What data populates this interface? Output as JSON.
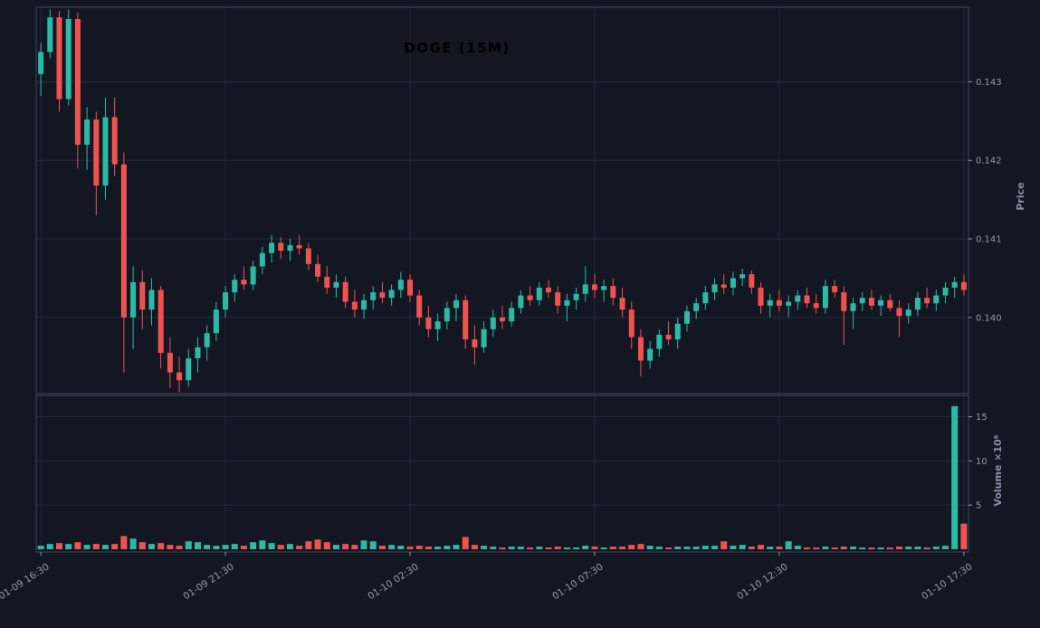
{
  "app": {
    "title": "DOGE (15M)"
  },
  "colors": {
    "background": "#131722",
    "up": "#2cb9a8",
    "down": "#ef5350",
    "grid": "#222838",
    "panel_border": "#3e4557",
    "tick_text": "#959aa8",
    "axis_label_text": "#8a90a0",
    "title_text": "#000000"
  },
  "chart_data": {
    "type": "candlestick",
    "title": "DOGE (15M)",
    "symbol": "DOGE",
    "timeframe": "15M",
    "grid": true,
    "legend_position": "none",
    "price_axis": {
      "label": "Price",
      "ticks": [
        "0.140",
        "0.141",
        "0.142",
        "0.143"
      ],
      "tick_values": [
        0.14,
        0.141,
        0.142,
        0.143
      ],
      "range": [
        0.13903,
        0.14395
      ],
      "side": "right"
    },
    "volume_axis": {
      "label": "Volume ×10⁶",
      "ticks": [
        "5",
        "10",
        "15"
      ],
      "tick_values": [
        5,
        10,
        15
      ],
      "range": [
        0,
        17
      ],
      "unit_multiplier": 1000000,
      "side": "right"
    },
    "x_axis": {
      "tick_indices": [
        0,
        20,
        40,
        60,
        80,
        100
      ],
      "tick_labels": [
        "01-09 16:30",
        "01-09 21:30",
        "01-10 02:30",
        "01-10 07:30",
        "01-10 12:30",
        "01-10 17:30"
      ],
      "label_rotation_deg": -33
    },
    "candle_fields": [
      "open",
      "high",
      "low",
      "close",
      "volume_millions"
    ],
    "candles": [
      [
        0.1431,
        0.1435,
        0.14282,
        0.14338,
        0.4
      ],
      [
        0.14338,
        0.14392,
        0.1433,
        0.14382,
        0.6
      ],
      [
        0.14382,
        0.1439,
        0.14262,
        0.14278,
        0.7
      ],
      [
        0.14278,
        0.14392,
        0.1427,
        0.1438,
        0.6
      ],
      [
        0.1438,
        0.14388,
        0.1419,
        0.1422,
        0.8
      ],
      [
        0.1422,
        0.14268,
        0.14188,
        0.14252,
        0.5
      ],
      [
        0.14252,
        0.14262,
        0.1413,
        0.14168,
        0.6
      ],
      [
        0.14168,
        0.1428,
        0.1415,
        0.14255,
        0.5
      ],
      [
        0.14255,
        0.1428,
        0.1418,
        0.14195,
        0.6
      ],
      [
        0.14195,
        0.1421,
        0.1393,
        0.14,
        1.5
      ],
      [
        0.14,
        0.14065,
        0.1396,
        0.14045,
        1.2
      ],
      [
        0.14045,
        0.1406,
        0.13985,
        0.1401,
        0.8
      ],
      [
        0.1401,
        0.1405,
        0.1399,
        0.14035,
        0.6
      ],
      [
        0.14035,
        0.1404,
        0.13935,
        0.13955,
        0.7
      ],
      [
        0.13955,
        0.13975,
        0.1391,
        0.1393,
        0.5
      ],
      [
        0.1393,
        0.1395,
        0.13905,
        0.1392,
        0.4
      ],
      [
        0.1392,
        0.1396,
        0.13912,
        0.13948,
        0.9
      ],
      [
        0.13948,
        0.13975,
        0.1393,
        0.13962,
        0.8
      ],
      [
        0.13962,
        0.1399,
        0.13945,
        0.1398,
        0.5
      ],
      [
        0.1398,
        0.1402,
        0.1397,
        0.1401,
        0.4
      ],
      [
        0.1401,
        0.1404,
        0.14,
        0.14032,
        0.5
      ],
      [
        0.14032,
        0.14055,
        0.1402,
        0.14048,
        0.6
      ],
      [
        0.14048,
        0.14065,
        0.14035,
        0.14042,
        0.4
      ],
      [
        0.14042,
        0.14072,
        0.14035,
        0.14065,
        0.8
      ],
      [
        0.14065,
        0.1409,
        0.14055,
        0.14082,
        1.0
      ],
      [
        0.14082,
        0.14105,
        0.1407,
        0.14095,
        0.7
      ],
      [
        0.14095,
        0.14102,
        0.14075,
        0.14085,
        0.5
      ],
      [
        0.14085,
        0.141,
        0.14072,
        0.14092,
        0.6
      ],
      [
        0.14092,
        0.14105,
        0.1408,
        0.14088,
        0.4
      ],
      [
        0.14088,
        0.14095,
        0.1406,
        0.14068,
        0.9
      ],
      [
        0.14068,
        0.1408,
        0.14045,
        0.14052,
        1.1
      ],
      [
        0.14052,
        0.14065,
        0.1403,
        0.14038,
        0.8
      ],
      [
        0.14038,
        0.14055,
        0.14025,
        0.14045,
        0.5
      ],
      [
        0.14045,
        0.14052,
        0.14012,
        0.1402,
        0.6
      ],
      [
        0.1402,
        0.14035,
        0.14,
        0.1401,
        0.5
      ],
      [
        0.1401,
        0.1403,
        0.13998,
        0.14022,
        1.0
      ],
      [
        0.14022,
        0.1404,
        0.1401,
        0.14032,
        0.9
      ],
      [
        0.14032,
        0.14045,
        0.14018,
        0.14025,
        0.4
      ],
      [
        0.14025,
        0.14042,
        0.14015,
        0.14035,
        0.5
      ],
      [
        0.14035,
        0.14058,
        0.14025,
        0.14048,
        0.4
      ],
      [
        0.14048,
        0.14055,
        0.1402,
        0.14028,
        0.3
      ],
      [
        0.14028,
        0.14035,
        0.1399,
        0.14,
        0.4
      ],
      [
        0.14,
        0.14015,
        0.13975,
        0.13985,
        0.3
      ],
      [
        0.13985,
        0.14005,
        0.1397,
        0.13995,
        0.3
      ],
      [
        0.13995,
        0.1402,
        0.13985,
        0.14012,
        0.4
      ],
      [
        0.14012,
        0.1403,
        0.13995,
        0.14022,
        0.5
      ],
      [
        0.14022,
        0.14028,
        0.1396,
        0.13972,
        1.4
      ],
      [
        0.13972,
        0.1399,
        0.1394,
        0.13962,
        0.5
      ],
      [
        0.13962,
        0.13995,
        0.13955,
        0.13985,
        0.4
      ],
      [
        0.13985,
        0.1401,
        0.13975,
        0.14,
        0.3
      ],
      [
        0.14,
        0.14015,
        0.13985,
        0.13995,
        0.2
      ],
      [
        0.13995,
        0.1402,
        0.13988,
        0.14012,
        0.3
      ],
      [
        0.14012,
        0.14035,
        0.14005,
        0.14028,
        0.3
      ],
      [
        0.14028,
        0.1404,
        0.14015,
        0.14022,
        0.2
      ],
      [
        0.14022,
        0.14045,
        0.14015,
        0.14038,
        0.3
      ],
      [
        0.14038,
        0.14048,
        0.14025,
        0.14032,
        0.2
      ],
      [
        0.14032,
        0.1404,
        0.14005,
        0.14015,
        0.3
      ],
      [
        0.14015,
        0.1403,
        0.13995,
        0.14022,
        0.2
      ],
      [
        0.14022,
        0.14038,
        0.1401,
        0.1403,
        0.2
      ],
      [
        0.1403,
        0.14065,
        0.1402,
        0.14042,
        0.4
      ],
      [
        0.14042,
        0.14055,
        0.14025,
        0.14035,
        0.3
      ],
      [
        0.14035,
        0.14048,
        0.1402,
        0.1404,
        0.2
      ],
      [
        0.1404,
        0.1405,
        0.14015,
        0.14025,
        0.3
      ],
      [
        0.14025,
        0.14038,
        0.14,
        0.1401,
        0.3
      ],
      [
        0.1401,
        0.1402,
        0.1396,
        0.13975,
        0.5
      ],
      [
        0.13975,
        0.13985,
        0.13925,
        0.13945,
        0.6
      ],
      [
        0.13945,
        0.1397,
        0.13935,
        0.1396,
        0.4
      ],
      [
        0.1396,
        0.13985,
        0.1395,
        0.13978,
        0.3
      ],
      [
        0.13978,
        0.13995,
        0.13965,
        0.13972,
        0.2
      ],
      [
        0.13972,
        0.14,
        0.1396,
        0.13992,
        0.3
      ],
      [
        0.13992,
        0.14015,
        0.13982,
        0.14008,
        0.3
      ],
      [
        0.14008,
        0.14025,
        0.13998,
        0.14018,
        0.3
      ],
      [
        0.14018,
        0.1404,
        0.1401,
        0.14032,
        0.4
      ],
      [
        0.14032,
        0.1405,
        0.14022,
        0.14042,
        0.4
      ],
      [
        0.14042,
        0.14055,
        0.1403,
        0.14038,
        0.9
      ],
      [
        0.14038,
        0.14058,
        0.14028,
        0.1405,
        0.4
      ],
      [
        0.1405,
        0.14062,
        0.1404,
        0.14055,
        0.5
      ],
      [
        0.14055,
        0.1406,
        0.1403,
        0.14038,
        0.3
      ],
      [
        0.14038,
        0.14045,
        0.14005,
        0.14015,
        0.5
      ],
      [
        0.14015,
        0.1403,
        0.14,
        0.14022,
        0.3
      ],
      [
        0.14022,
        0.14035,
        0.14008,
        0.14015,
        0.3
      ],
      [
        0.14015,
        0.14028,
        0.14,
        0.1402,
        0.9
      ],
      [
        0.1402,
        0.14035,
        0.1401,
        0.14028,
        0.4
      ],
      [
        0.14028,
        0.14038,
        0.14012,
        0.14018,
        0.2
      ],
      [
        0.14018,
        0.1403,
        0.14005,
        0.14012,
        0.2
      ],
      [
        0.14012,
        0.14048,
        0.14005,
        0.1404,
        0.3
      ],
      [
        0.1404,
        0.14048,
        0.14025,
        0.14032,
        0.2
      ],
      [
        0.14032,
        0.1404,
        0.13965,
        0.14008,
        0.3
      ],
      [
        0.14008,
        0.14025,
        0.13985,
        0.14018,
        0.3
      ],
      [
        0.14018,
        0.14032,
        0.14008,
        0.14025,
        0.2
      ],
      [
        0.14025,
        0.14035,
        0.1401,
        0.14015,
        0.2
      ],
      [
        0.14015,
        0.14028,
        0.14002,
        0.14022,
        0.2
      ],
      [
        0.14022,
        0.1403,
        0.14008,
        0.14012,
        0.2
      ],
      [
        0.14012,
        0.14022,
        0.13975,
        0.14002,
        0.3
      ],
      [
        0.14002,
        0.14018,
        0.13992,
        0.1401,
        0.3
      ],
      [
        0.1401,
        0.14032,
        0.14002,
        0.14025,
        0.3
      ],
      [
        0.14025,
        0.14038,
        0.14012,
        0.14018,
        0.2
      ],
      [
        0.14018,
        0.14035,
        0.14008,
        0.14028,
        0.3
      ],
      [
        0.14028,
        0.14045,
        0.14018,
        0.14038,
        0.4
      ],
      [
        0.14038,
        0.14052,
        0.14025,
        0.14045,
        16.2
      ],
      [
        0.14045,
        0.14055,
        0.14028,
        0.14035,
        2.9
      ]
    ]
  }
}
